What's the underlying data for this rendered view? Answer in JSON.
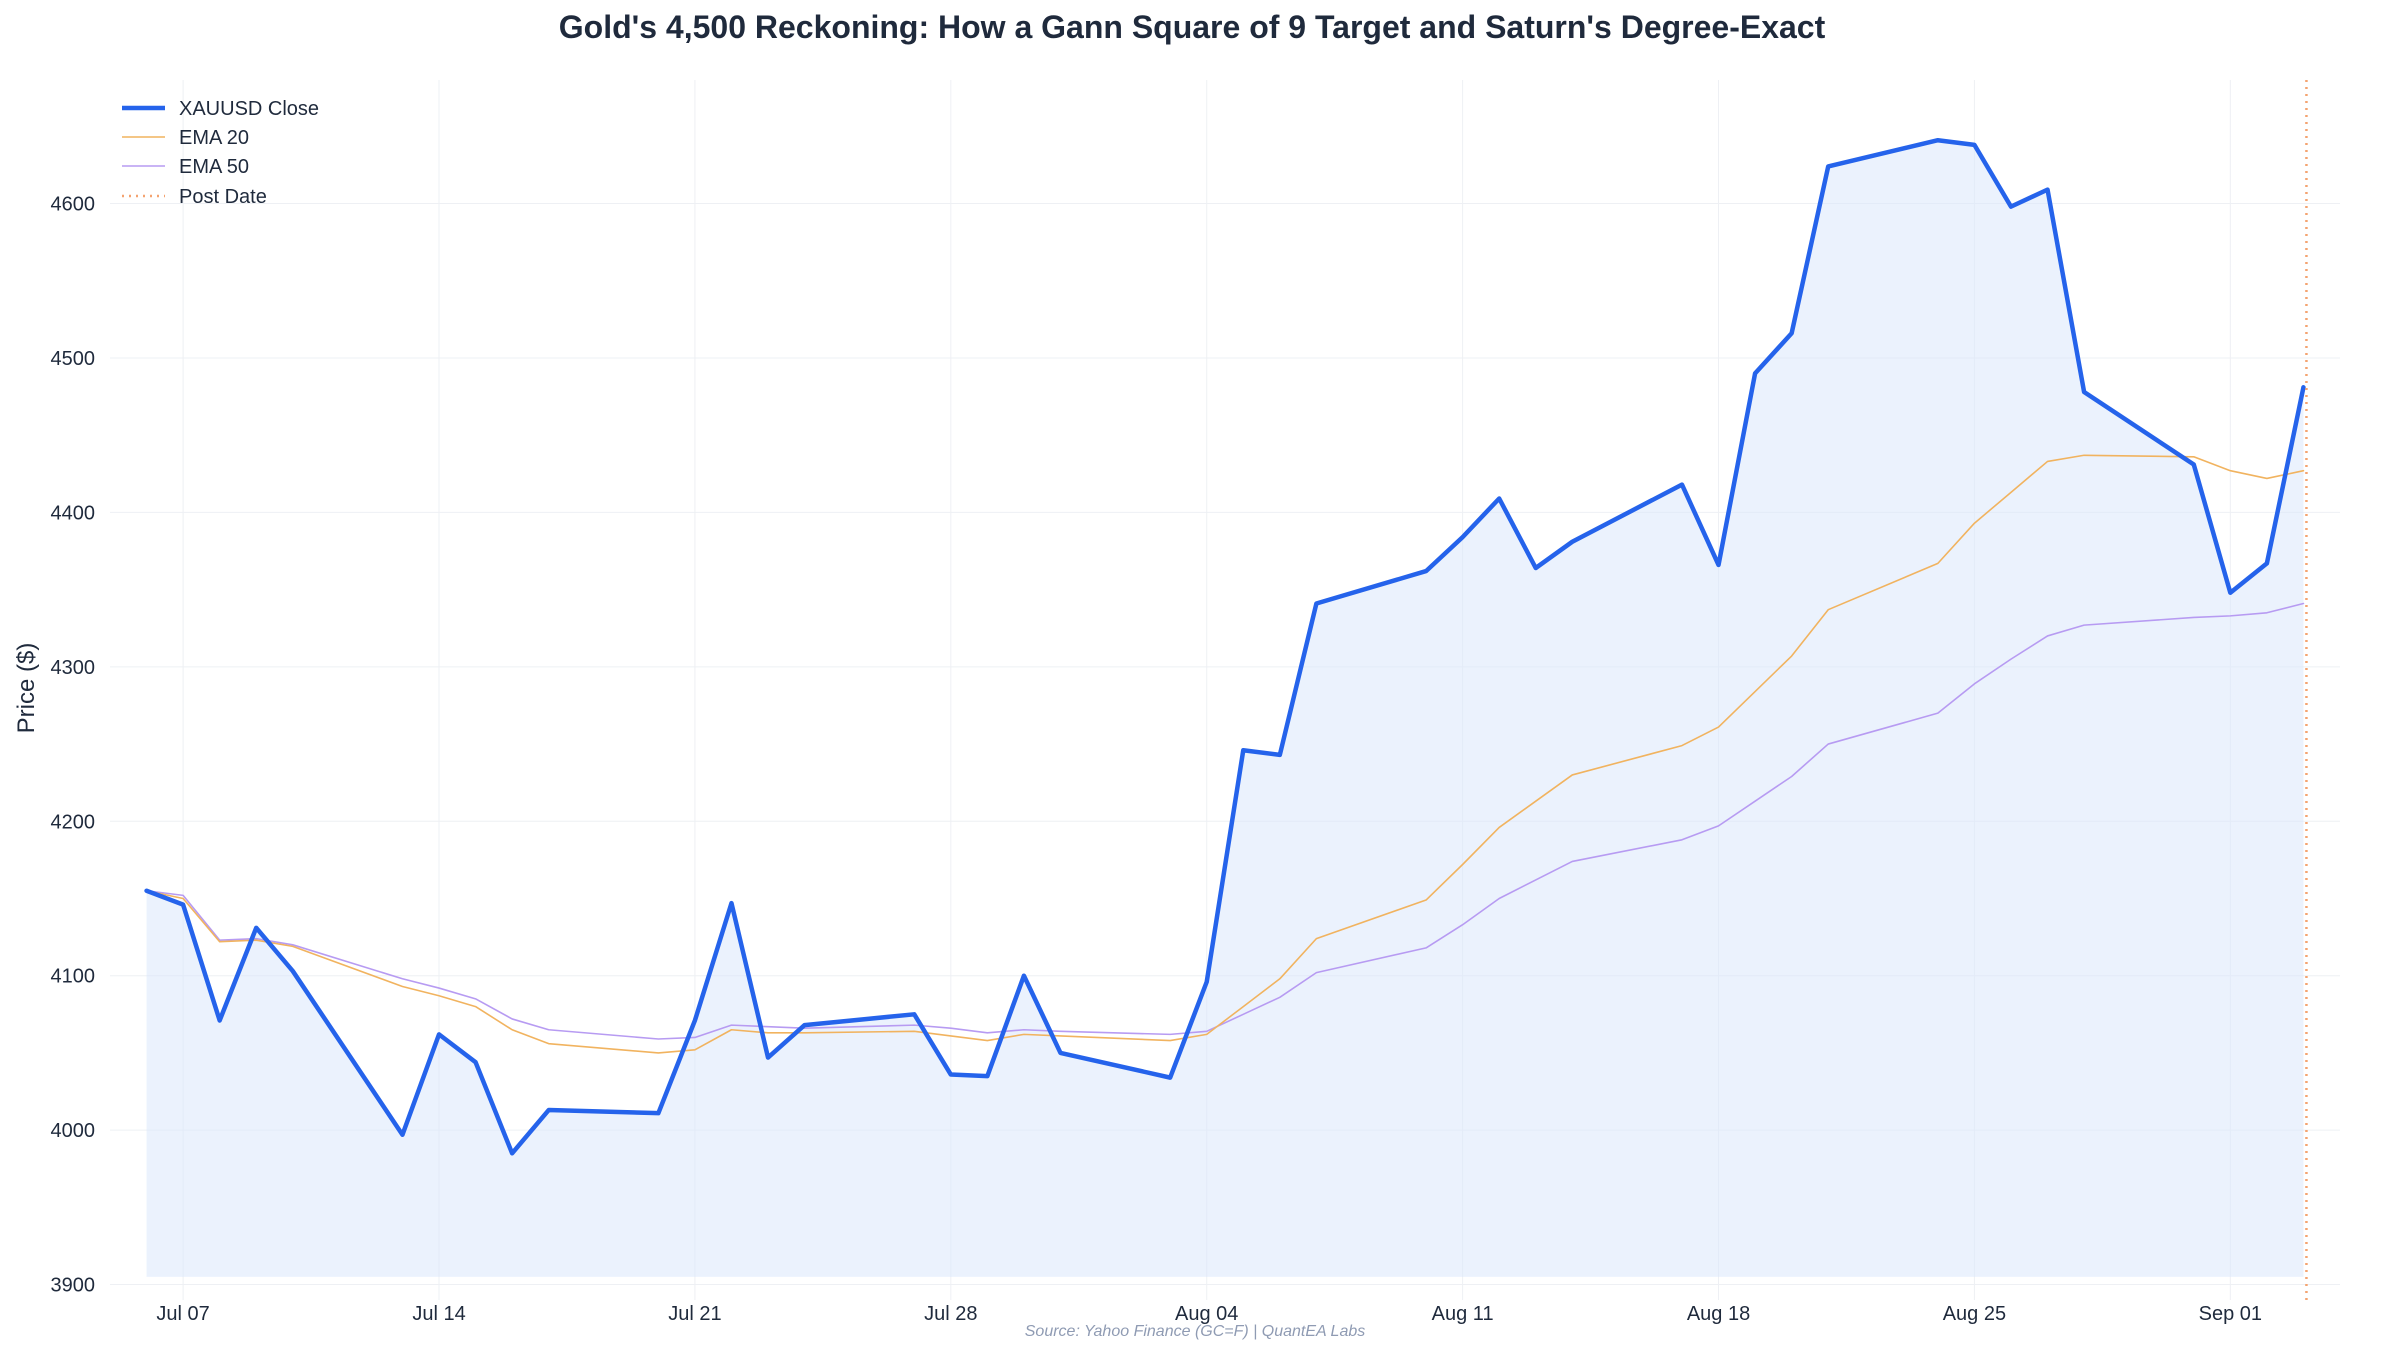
{
  "chart_data": {
    "type": "line",
    "title": "Gold's 4,500 Reckoning: How a Gann Square of 9 Target and Saturn's Degree-Exact",
    "xlabel": "",
    "ylabel": "Price ($)",
    "source": "Source: Yahoo Finance (GC=F) | QuantEA Labs",
    "ylim": [
      3890,
      4680
    ],
    "xlim": [
      "2025-07-05",
      "2025-09-04"
    ],
    "y_ticks": [
      3900,
      4000,
      4100,
      4200,
      4300,
      4400,
      4500,
      4600
    ],
    "x_ticks": [
      {
        "date": "2025-07-07",
        "label": "Jul 07"
      },
      {
        "date": "2025-07-14",
        "label": "Jul 14"
      },
      {
        "date": "2025-07-21",
        "label": "Jul 21"
      },
      {
        "date": "2025-07-28",
        "label": "Jul 28"
      },
      {
        "date": "2025-08-04",
        "label": "Aug 04"
      },
      {
        "date": "2025-08-11",
        "label": "Aug 11"
      },
      {
        "date": "2025-08-18",
        "label": "Aug 18"
      },
      {
        "date": "2025-08-25",
        "label": "Aug 25"
      },
      {
        "date": "2025-09-01",
        "label": "Sep 01"
      }
    ],
    "grid": true,
    "legend_position": "top-left",
    "fill_baseline": 3905,
    "x": [
      "2025-07-06",
      "2025-07-07",
      "2025-07-08",
      "2025-07-09",
      "2025-07-10",
      "2025-07-13",
      "2025-07-14",
      "2025-07-15",
      "2025-07-16",
      "2025-07-17",
      "2025-07-20",
      "2025-07-21",
      "2025-07-22",
      "2025-07-23",
      "2025-07-24",
      "2025-07-27",
      "2025-07-28",
      "2025-07-29",
      "2025-07-30",
      "2025-07-31",
      "2025-08-03",
      "2025-08-04",
      "2025-08-05",
      "2025-08-06",
      "2025-08-07",
      "2025-08-10",
      "2025-08-11",
      "2025-08-12",
      "2025-08-13",
      "2025-08-14",
      "2025-08-17",
      "2025-08-18",
      "2025-08-19",
      "2025-08-20",
      "2025-08-21",
      "2025-08-24",
      "2025-08-25",
      "2025-08-26",
      "2025-08-27",
      "2025-08-28",
      "2025-08-31",
      "2025-09-01",
      "2025-09-02",
      "2025-09-03"
    ],
    "series": [
      {
        "name": "XAUUSD Close",
        "color": "#2563eb",
        "width": 4.5,
        "values": [
          4155,
          4146,
          4071,
          4131,
          4103,
          3997,
          4062,
          4044,
          3985,
          4013,
          4011,
          4071,
          4147,
          4047,
          4068,
          4075,
          4036,
          4035,
          4100,
          4050,
          4034,
          4096,
          4246,
          4243,
          4341,
          4362,
          4384,
          4409,
          4364,
          4381,
          4418,
          4366,
          4490,
          4516,
          4624,
          4641,
          4638,
          4598,
          4609,
          4478,
          4431,
          4348,
          4367,
          4481
        ]
      },
      {
        "name": "EMA 20",
        "color": "#f1b35f",
        "width": 1.6,
        "values": [
          4155,
          4150,
          4122,
          4123,
          4119,
          4093,
          4087,
          4080,
          4065,
          4056,
          4050,
          4052,
          4065,
          4063,
          4063,
          4064,
          4061,
          4058,
          4062,
          4061,
          4058,
          4062,
          4080,
          4098,
          4124,
          4149,
          4172,
          4196,
          4213,
          4230,
          4249,
          4261,
          4284,
          4307,
          4337,
          4367,
          4393,
          4413,
          4433,
          4437,
          4436,
          4427,
          4422,
          4427
        ]
      },
      {
        "name": "EMA 50",
        "color": "#b79bf2",
        "width": 1.6,
        "values": [
          4155,
          4152,
          4123,
          4124,
          4120,
          4098,
          4092,
          4085,
          4072,
          4065,
          4059,
          4060,
          4068,
          4067,
          4066,
          4068,
          4066,
          4063,
          4065,
          4064,
          4062,
          4064,
          4075,
          4086,
          4102,
          4118,
          4133,
          4150,
          4162,
          4174,
          4188,
          4197,
          4213,
          4229,
          4250,
          4270,
          4289,
          4305,
          4320,
          4327,
          4332,
          4333,
          4335,
          4341
        ]
      }
    ],
    "post_date": {
      "name": "Post Date",
      "date": "2025-09-03",
      "color": "#f4a370"
    }
  }
}
